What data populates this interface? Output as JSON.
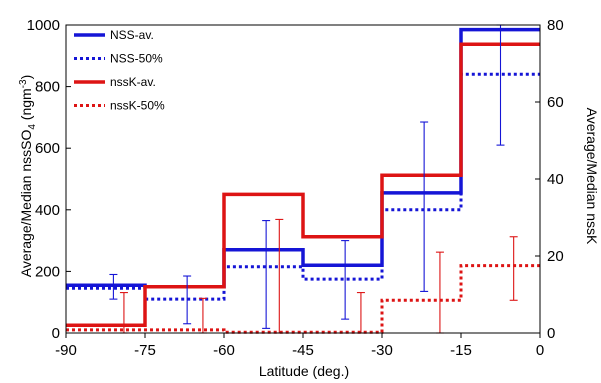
{
  "chart_data": {
    "type": "line",
    "xlabel": "Latitude  (deg.)",
    "ylabel_left": "Average/Median nssSO4 (ngm-3)",
    "ylabel_left_parts": {
      "base": "Average/Median nssSO",
      "sub": "4",
      "mid": " (ngm",
      "sup": "-3",
      "end": ")"
    },
    "ylabel_right": "Average/Median nssK",
    "xlim": [
      -90,
      0
    ],
    "ylim_left": [
      0,
      1000
    ],
    "ylim_right": [
      0,
      80
    ],
    "x_ticks": [
      "-90",
      "-75",
      "-60",
      "-45",
      "-30",
      "-15",
      "0"
    ],
    "y_left_ticks": [
      "0",
      "200",
      "400",
      "600",
      "800",
      "1000"
    ],
    "y_right_ticks": [
      "0",
      "20",
      "40",
      "60",
      "80"
    ],
    "grid": false,
    "legend_position": "top-left",
    "bins": [
      [
        -90,
        -75
      ],
      [
        -75,
        -60
      ],
      [
        -60,
        -45
      ],
      [
        -45,
        -30
      ],
      [
        -30,
        -15
      ],
      [
        -15,
        0
      ]
    ],
    "series": [
      {
        "name": "NSS-av.",
        "axis": "left",
        "style": "solid",
        "color": "#1515d6",
        "values": [
          155,
          150,
          270,
          220,
          455,
          985
        ]
      },
      {
        "name": "NSS-50%",
        "axis": "left",
        "style": "dotted",
        "color": "#1515d6",
        "values": [
          145,
          110,
          215,
          175,
          400,
          840
        ]
      },
      {
        "name": "nssK-av.",
        "axis": "right",
        "style": "solid",
        "color": "#dd1414",
        "values": [
          2,
          12,
          36,
          25,
          41,
          75
        ]
      },
      {
        "name": "nssK-50%",
        "axis": "right",
        "style": "dotted",
        "color": "#dd1414",
        "values": [
          0.8,
          0.8,
          0.2,
          0.2,
          8.5,
          17.5
        ]
      }
    ],
    "error_bars": [
      {
        "series": "NSS-50%",
        "axis": "left",
        "color": "#1515d6",
        "points": [
          [
            -81,
            110,
            190
          ],
          [
            -67,
            30,
            185
          ],
          [
            -52,
            15,
            365
          ],
          [
            -37,
            45,
            300
          ],
          [
            -22,
            135,
            685
          ],
          [
            -7.5,
            610,
            1000
          ]
        ]
      },
      {
        "series": "nssK-50%",
        "axis": "right",
        "color": "#dd1414",
        "points": [
          [
            -79,
            0,
            10.5
          ],
          [
            -64,
            0,
            9
          ],
          [
            -49.5,
            0,
            29.5
          ],
          [
            -34,
            0,
            10.5
          ],
          [
            -19,
            0,
            21
          ],
          [
            -5,
            8.5,
            25
          ]
        ]
      }
    ]
  }
}
